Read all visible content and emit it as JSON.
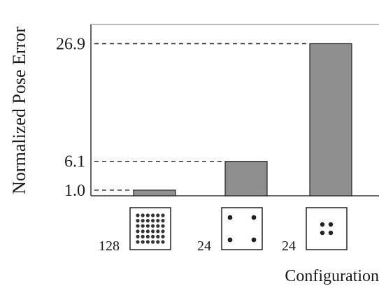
{
  "chart_data": {
    "type": "bar",
    "ylabel": "Normalized Pose Error",
    "xlabel": "Configuration",
    "categories": [
      "128",
      "24",
      "24"
    ],
    "values": [
      1.0,
      6.1,
      26.9
    ],
    "yticks": [
      "1.0",
      "6.1",
      "26.9"
    ],
    "ylim": [
      0,
      30.3
    ],
    "bar_color": "#8f8f8f",
    "category_icons": [
      "dense-8x6-grid-icon",
      "four-corner-dots-icon",
      "four-center-dots-icon"
    ],
    "grid": false,
    "legend": "none"
  }
}
